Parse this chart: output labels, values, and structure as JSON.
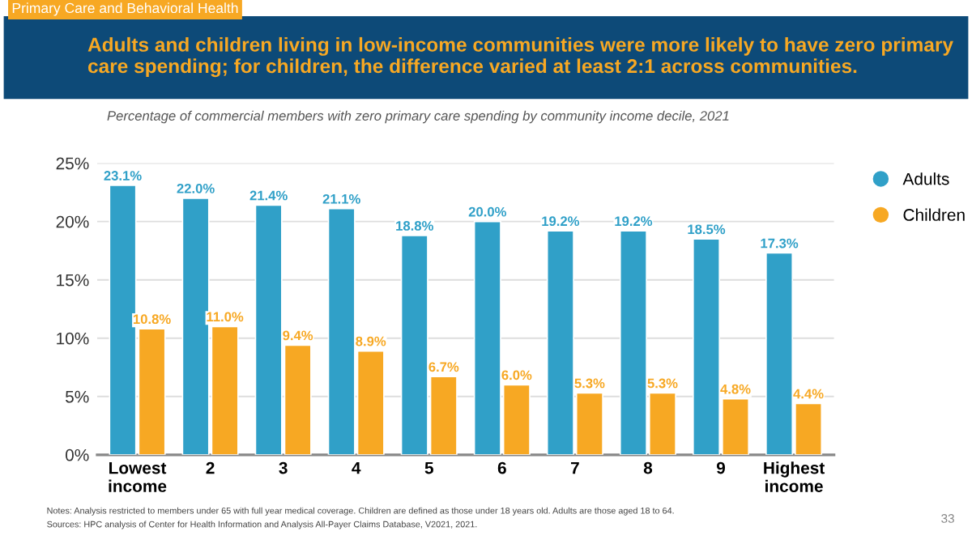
{
  "chart_data": {
    "type": "bar",
    "title": "Adults and children living in low-income communities were more likely to have zero primary care spending; for children, the difference varied at least 2:1 across communities.",
    "subtitle": "Percentage of commercial members with zero primary care spending by community income decile, 2021",
    "categories": [
      "Lowest\nincome",
      "2",
      "3",
      "4",
      "5",
      "6",
      "7",
      "8",
      "9",
      "Highest\nincome"
    ],
    "series": [
      {
        "name": "Adults",
        "color": "#30a0c8",
        "values": [
          23.1,
          22.0,
          21.4,
          21.1,
          18.8,
          20.0,
          19.2,
          19.2,
          18.5,
          17.3
        ],
        "value_labels": [
          "23.1%",
          "22.0%",
          "21.4%",
          "21.1%",
          "18.8%",
          "20.0%",
          "19.2%",
          "19.2%",
          "18.5%",
          "17.3%"
        ]
      },
      {
        "name": "Children",
        "color": "#f7a823",
        "values": [
          10.8,
          11.0,
          9.4,
          8.9,
          6.7,
          6.0,
          5.3,
          5.3,
          4.8,
          4.4
        ],
        "value_labels": [
          "10.8%",
          "11.0%",
          "9.4%",
          "8.9%",
          "6.7%",
          "6.0%",
          "5.3%",
          "5.3%",
          "4.8%",
          "4.4%"
        ]
      }
    ],
    "ylim": [
      0,
      25
    ],
    "yticks": [
      {
        "value": 0,
        "label": "0%"
      },
      {
        "value": 5,
        "label": "5%"
      },
      {
        "value": 10,
        "label": "10%"
      },
      {
        "value": 15,
        "label": "15%"
      },
      {
        "value": 20,
        "label": "20%"
      },
      {
        "value": 25,
        "label": "25%"
      }
    ],
    "grid": "y",
    "legend": "top right",
    "annotations": [
      "Primary Care and Behavioral Health",
      "Notes: Analysis restricted to members under 65 with full year medical coverage. Children are defined as those under 18 years old. Adults are those aged 18 to 64.",
      "Sources: HPC analysis of Center for Health Information and Analysis All-Payer Claims Database, V2021, 2021.",
      "33"
    ]
  }
}
